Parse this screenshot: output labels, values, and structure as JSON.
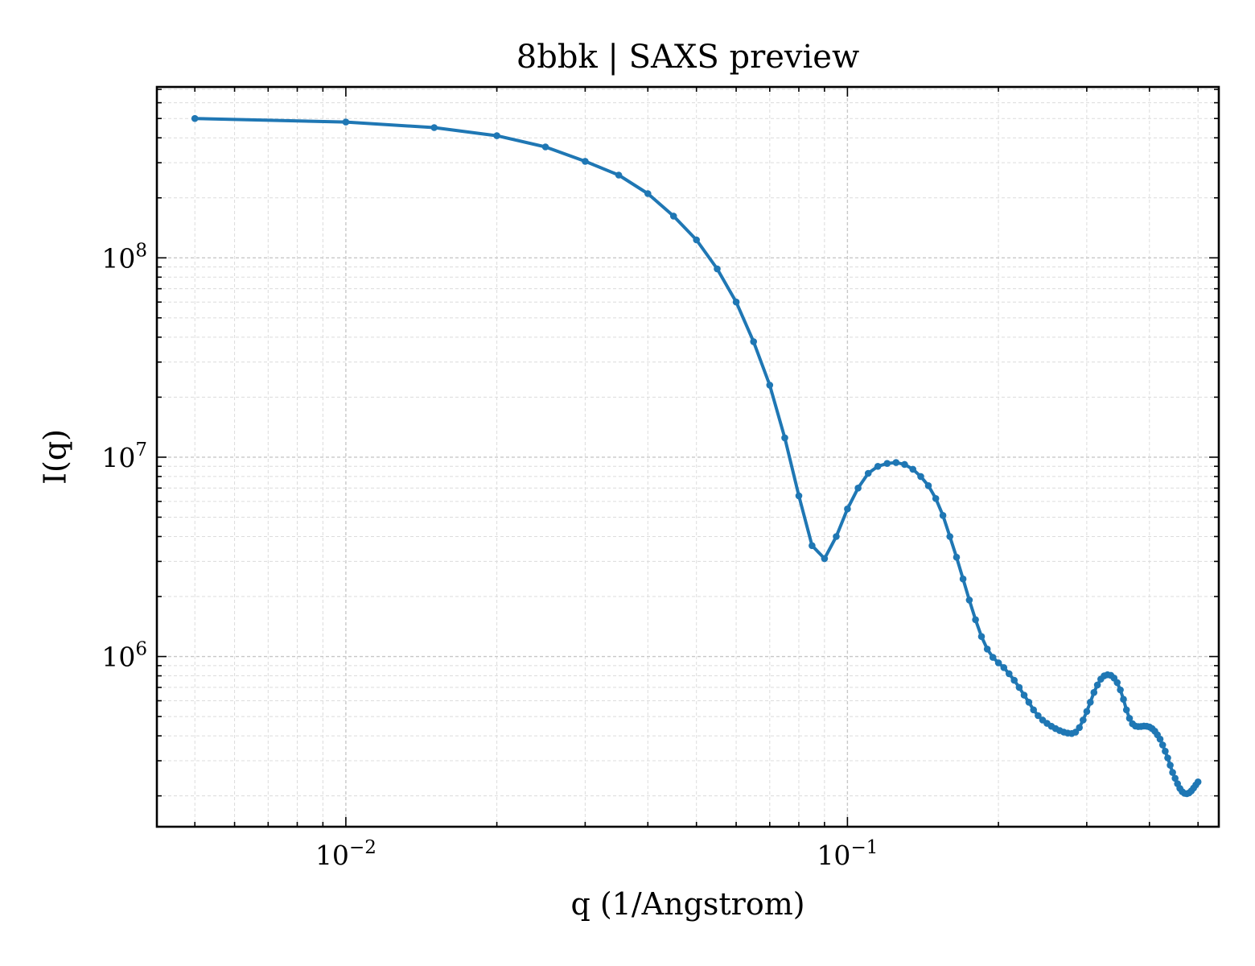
{
  "chart_data": {
    "type": "line",
    "title": "8bbk | SAXS preview",
    "xlabel": "q (1/Angstrom)",
    "ylabel": "I(q)",
    "xscale": "log",
    "yscale": "log",
    "xlim": [
      0.0042,
      0.55
    ],
    "ylim": [
      140000,
      720000000
    ],
    "grid": true,
    "markers": true,
    "color": "#1f77b4",
    "x_ticks": [
      {
        "value": 0.01,
        "base": "10",
        "exp": "−2"
      },
      {
        "value": 0.1,
        "base": "10",
        "exp": "−1"
      }
    ],
    "y_ticks": [
      {
        "value": 1000000,
        "base": "10",
        "exp": "6"
      },
      {
        "value": 10000000,
        "base": "10",
        "exp": "7"
      },
      {
        "value": 100000000,
        "base": "10",
        "exp": "8"
      }
    ],
    "series": [
      {
        "x": [
          0.005,
          0.01,
          0.015,
          0.02,
          0.025,
          0.03,
          0.035,
          0.04,
          0.045,
          0.05,
          0.055,
          0.06,
          0.065,
          0.07,
          0.075,
          0.08,
          0.085,
          0.09,
          0.095,
          0.1,
          0.105,
          0.11,
          0.115,
          0.12,
          0.125,
          0.13,
          0.135,
          0.14,
          0.145,
          0.15,
          0.155,
          0.16,
          0.165,
          0.17,
          0.175,
          0.18,
          0.185,
          0.19,
          0.195,
          0.2,
          0.205,
          0.21,
          0.215,
          0.22,
          0.225,
          0.23,
          0.235,
          0.24,
          0.245,
          0.25,
          0.255,
          0.26,
          0.265,
          0.27,
          0.275,
          0.28,
          0.285,
          0.29,
          0.295,
          0.3,
          0.305,
          0.31,
          0.315,
          0.32,
          0.325,
          0.33,
          0.335,
          0.34,
          0.345,
          0.35,
          0.355,
          0.36,
          0.365,
          0.37,
          0.375,
          0.38,
          0.385,
          0.39,
          0.395,
          0.4,
          0.405,
          0.41,
          0.415,
          0.42,
          0.425,
          0.43,
          0.435,
          0.44,
          0.445,
          0.45,
          0.455,
          0.46,
          0.465,
          0.47,
          0.475,
          0.48,
          0.485,
          0.49,
          0.495,
          0.5
        ],
        "y": [
          500000000,
          480000000,
          450000000,
          410000000,
          360000000,
          305000000,
          260000000,
          210000000,
          162000000,
          123000000,
          88000000,
          60000000,
          38000000,
          23000000,
          12500000,
          6400000,
          3600000,
          3100000,
          4000000,
          5500000,
          7000000,
          8300000,
          9000000,
          9300000,
          9400000,
          9200000,
          8700000,
          8000000,
          7200000,
          6200000,
          5100000,
          4000000,
          3150000,
          2450000,
          1920000,
          1530000,
          1260000,
          1090000,
          990000,
          930000,
          880000,
          820000,
          760000,
          700000,
          640000,
          590000,
          540000,
          505000,
          480000,
          462000,
          447000,
          435000,
          425000,
          418000,
          413000,
          411000,
          418000,
          440000,
          480000,
          530000,
          590000,
          660000,
          720000,
          770000,
          800000,
          810000,
          805000,
          780000,
          740000,
          680000,
          610000,
          540000,
          490000,
          460000,
          448000,
          445000,
          446000,
          448000,
          447000,
          443000,
          435000,
          422000,
          405000,
          385000,
          360000,
          335000,
          310000,
          285000,
          262000,
          245000,
          230000,
          218000,
          210000,
          206000,
          205000,
          207000,
          212000,
          219000,
          227000,
          235000
        ]
      }
    ]
  }
}
